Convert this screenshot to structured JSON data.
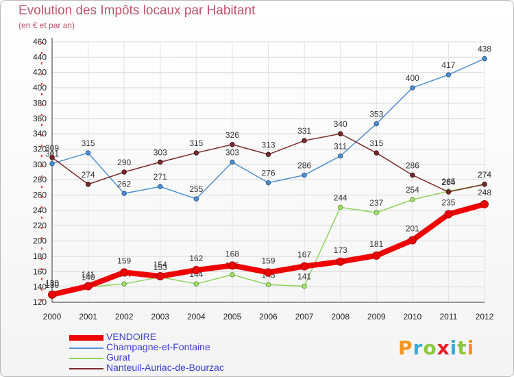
{
  "title": "Evolution des Impôts locaux par Habitant",
  "subtitle": "(en € et par an)",
  "logo": {
    "text": "Proxiti",
    "colors": [
      "#f7941d",
      "#39a9dc",
      "#8dc63f",
      "#ed1c24",
      "#39a9dc",
      "#8dc63f",
      "#f7941d"
    ]
  },
  "chart_data": {
    "type": "line",
    "x": [
      "2000",
      "2001",
      "2002",
      "2003",
      "2004",
      "2005",
      "2006",
      "2007",
      "2008",
      "2009",
      "2010",
      "2011",
      "2012"
    ],
    "ylim": [
      120,
      460
    ],
    "yticks": [
      120,
      140,
      160,
      180,
      200,
      220,
      240,
      260,
      280,
      300,
      320,
      340,
      360,
      380,
      400,
      420,
      440,
      460
    ],
    "grid": true,
    "legend_position": "bottom-left",
    "series": [
      {
        "name": "Champagne-et-Fontaine",
        "color": "#4f8fcf",
        "values": [
          301,
          315,
          262,
          271,
          255,
          303,
          276,
          286,
          311,
          353,
          400,
          417,
          438
        ]
      },
      {
        "name": "Gurat",
        "color": "#8ed45a",
        "values": [
          130,
          140,
          144,
          153,
          144,
          156,
          143,
          141,
          244,
          237,
          254,
          265,
          274
        ]
      },
      {
        "name": "Nanteuil-Auriac-de-Bourzac",
        "color": "#7a2a2a",
        "values": [
          309,
          274,
          290,
          303,
          315,
          326,
          313,
          331,
          340,
          315,
          286,
          264,
          274
        ]
      },
      {
        "name": "VENDOIRE",
        "color": "#ee0000",
        "values": [
          130,
          141,
          159,
          154,
          162,
          168,
          159,
          167,
          173,
          181,
          201,
          235,
          248
        ]
      }
    ],
    "legend_order": [
      "VENDOIRE",
      "Champagne-et-Fontaine",
      "Gurat",
      "Nanteuil-Auriac-de-Bourzac"
    ]
  }
}
